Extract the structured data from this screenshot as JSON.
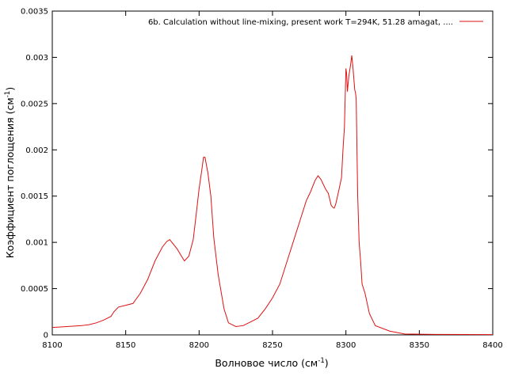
{
  "chart_data": {
    "type": "line",
    "xlabel": "Волновое число (см",
    "xlabel_sup": "-1",
    "xlabel_end": ")",
    "ylabel": "Коэффициент поглощения (см",
    "ylabel_sup": "-1",
    "ylabel_end": ")",
    "xlim": [
      8100,
      8400
    ],
    "ylim": [
      0,
      0.0035
    ],
    "xticks": [
      "8100",
      "8150",
      "8200",
      "8250",
      "8300",
      "8350",
      "8400"
    ],
    "yticks": [
      "0",
      "0.0005",
      "0.001",
      "0.0015",
      "0.002",
      "0.0025",
      "0.003",
      "0.0035"
    ],
    "grid": false,
    "legend_position": "top-right",
    "series": [
      {
        "name": "6b. Calculation without line-mixing, present work T=294K, 51.28 amagat, ....",
        "color": "#dd1111",
        "x": [
          8100,
          8110,
          8120,
          8125,
          8130,
          8135,
          8140,
          8142,
          8145,
          8150,
          8155,
          8160,
          8165,
          8170,
          8175,
          8178,
          8180,
          8185,
          8188,
          8190,
          8193,
          8196,
          8198,
          8200,
          8202,
          8203,
          8204,
          8206,
          8208,
          8210,
          8213,
          8217,
          8220,
          8225,
          8230,
          8235,
          8240,
          8245,
          8250,
          8255,
          8260,
          8265,
          8270,
          8273,
          8276,
          8279,
          8281,
          8283,
          8286,
          8288,
          8290,
          8291,
          8292,
          8293,
          8295,
          8297,
          8298,
          8299,
          8300,
          8300.5,
          8301,
          8302,
          8303,
          8304,
          8305,
          8306,
          8306.5,
          8307,
          8308,
          8309,
          8310,
          8311,
          8313,
          8316,
          8320,
          8330,
          8340,
          8360,
          8400
        ],
        "y": [
          8e-05,
          9e-05,
          0.0001,
          0.00011,
          0.00013,
          0.00016,
          0.0002,
          0.00025,
          0.0003,
          0.00032,
          0.00034,
          0.00045,
          0.0006,
          0.0008,
          0.00095,
          0.00101,
          0.00103,
          0.00093,
          0.00085,
          0.0008,
          0.00085,
          0.00103,
          0.0013,
          0.00158,
          0.0018,
          0.00192,
          0.00192,
          0.00175,
          0.0015,
          0.00105,
          0.00065,
          0.00028,
          0.00013,
          9e-05,
          0.0001,
          0.00014,
          0.00018,
          0.00028,
          0.0004,
          0.00055,
          0.0008,
          0.00105,
          0.0013,
          0.00145,
          0.00155,
          0.00167,
          0.00172,
          0.00168,
          0.00158,
          0.00153,
          0.0014,
          0.00138,
          0.00137,
          0.00141,
          0.00155,
          0.0017,
          0.002,
          0.00225,
          0.00288,
          0.00282,
          0.00263,
          0.0028,
          0.0029,
          0.00302,
          0.00285,
          0.00265,
          0.00262,
          0.00255,
          0.00152,
          0.001,
          0.0008,
          0.00055,
          0.00045,
          0.00023,
          0.0001,
          4e-05,
          1e-05,
          5e-06,
          3e-06
        ]
      }
    ]
  }
}
